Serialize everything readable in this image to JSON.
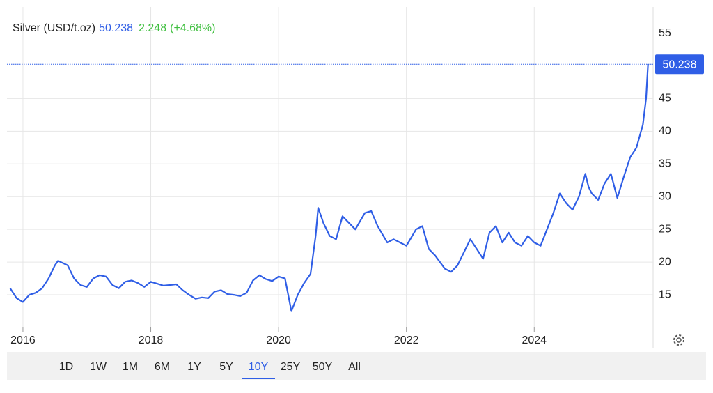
{
  "chart_data": {
    "type": "line",
    "title": "Silver (USD/t.oz)",
    "price": 50.238,
    "change": 2.248,
    "change_label": "(+4.68%)",
    "line_color": "#2f5ee6",
    "price_color": "#2f5ee6",
    "change_color": "#3fbf3f",
    "grid": true,
    "xlim": [
      2015.75,
      2025.86
    ],
    "xticks": [
      2016,
      2018,
      2020,
      2022,
      2024
    ],
    "ylim": [
      10,
      59
    ],
    "yticks": [
      15,
      20,
      25,
      30,
      35,
      40,
      45,
      50,
      55
    ],
    "x": [
      2015.8,
      2015.9,
      2016.0,
      2016.1,
      2016.2,
      2016.3,
      2016.4,
      2016.5,
      2016.55,
      2016.7,
      2016.8,
      2016.9,
      2017.0,
      2017.1,
      2017.2,
      2017.3,
      2017.4,
      2017.5,
      2017.6,
      2017.7,
      2017.8,
      2017.9,
      2018.0,
      2018.1,
      2018.2,
      2018.3,
      2018.4,
      2018.5,
      2018.6,
      2018.7,
      2018.8,
      2018.9,
      2019.0,
      2019.1,
      2019.2,
      2019.3,
      2019.4,
      2019.5,
      2019.6,
      2019.7,
      2019.8,
      2019.9,
      2020.0,
      2020.1,
      2020.2,
      2020.3,
      2020.4,
      2020.5,
      2020.58,
      2020.62,
      2020.7,
      2020.8,
      2020.9,
      2021.0,
      2021.1,
      2021.2,
      2021.35,
      2021.45,
      2021.55,
      2021.7,
      2021.8,
      2021.9,
      2022.0,
      2022.15,
      2022.25,
      2022.35,
      2022.45,
      2022.6,
      2022.7,
      2022.8,
      2022.9,
      2023.0,
      2023.1,
      2023.2,
      2023.3,
      2023.4,
      2023.5,
      2023.6,
      2023.7,
      2023.8,
      2023.9,
      2024.0,
      2024.1,
      2024.2,
      2024.3,
      2024.4,
      2024.5,
      2024.6,
      2024.7,
      2024.8,
      2024.85,
      2024.9,
      2025.0,
      2025.1,
      2025.2,
      2025.3,
      2025.4,
      2025.5,
      2025.6,
      2025.7,
      2025.75,
      2025.78
    ],
    "values": [
      16,
      14.5,
      13.9,
      15,
      15.3,
      16,
      17.5,
      19.5,
      20.2,
      19.5,
      17.5,
      16.5,
      16.2,
      17.5,
      18,
      17.8,
      16.5,
      16,
      17,
      17.2,
      16.8,
      16.2,
      17,
      16.7,
      16.4,
      16.5,
      16.6,
      15.7,
      15,
      14.4,
      14.6,
      14.5,
      15.5,
      15.7,
      15.1,
      15,
      14.8,
      15.3,
      17.2,
      18,
      17.4,
      17.1,
      17.8,
      17.5,
      12.5,
      15,
      16.8,
      18.2,
      24,
      28.3,
      26,
      24,
      23.5,
      27,
      26,
      25,
      27.5,
      27.8,
      25.5,
      23,
      23.5,
      23,
      22.5,
      25,
      25.5,
      22,
      21,
      19,
      18.5,
      19.5,
      21.5,
      23.5,
      22,
      20.5,
      24.5,
      25.5,
      23,
      24.5,
      23,
      22.5,
      24,
      23,
      22.5,
      25,
      27.5,
      30.5,
      29,
      28,
      30,
      33.5,
      31.5,
      30.5,
      29.5,
      32,
      33.5,
      29.8,
      33,
      36,
      37.5,
      41,
      45,
      50.238
    ]
  },
  "toolbar": {
    "ranges": [
      "1D",
      "1W",
      "1M",
      "6M",
      "1Y",
      "5Y",
      "10Y",
      "25Y",
      "50Y",
      "All"
    ],
    "selected_range": "10Y"
  }
}
